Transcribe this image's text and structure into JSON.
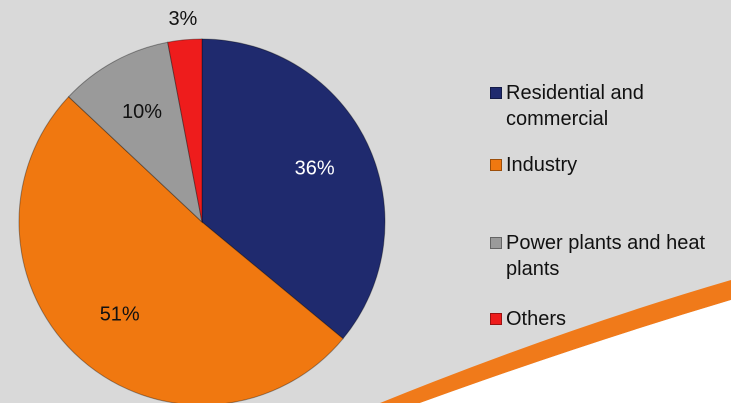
{
  "chart_data": {
    "type": "pie",
    "categories": [
      "Residential and commercial",
      "Industry",
      "Power plants and heat plants",
      "Others"
    ],
    "values": [
      36,
      51,
      10,
      3
    ],
    "value_labels": [
      "36%",
      "51%",
      "10%",
      "3%"
    ],
    "colors": [
      "#1f2a6e",
      "#f07810",
      "#9a9a9a",
      "#ee1c1c"
    ],
    "legend": "right"
  }
}
